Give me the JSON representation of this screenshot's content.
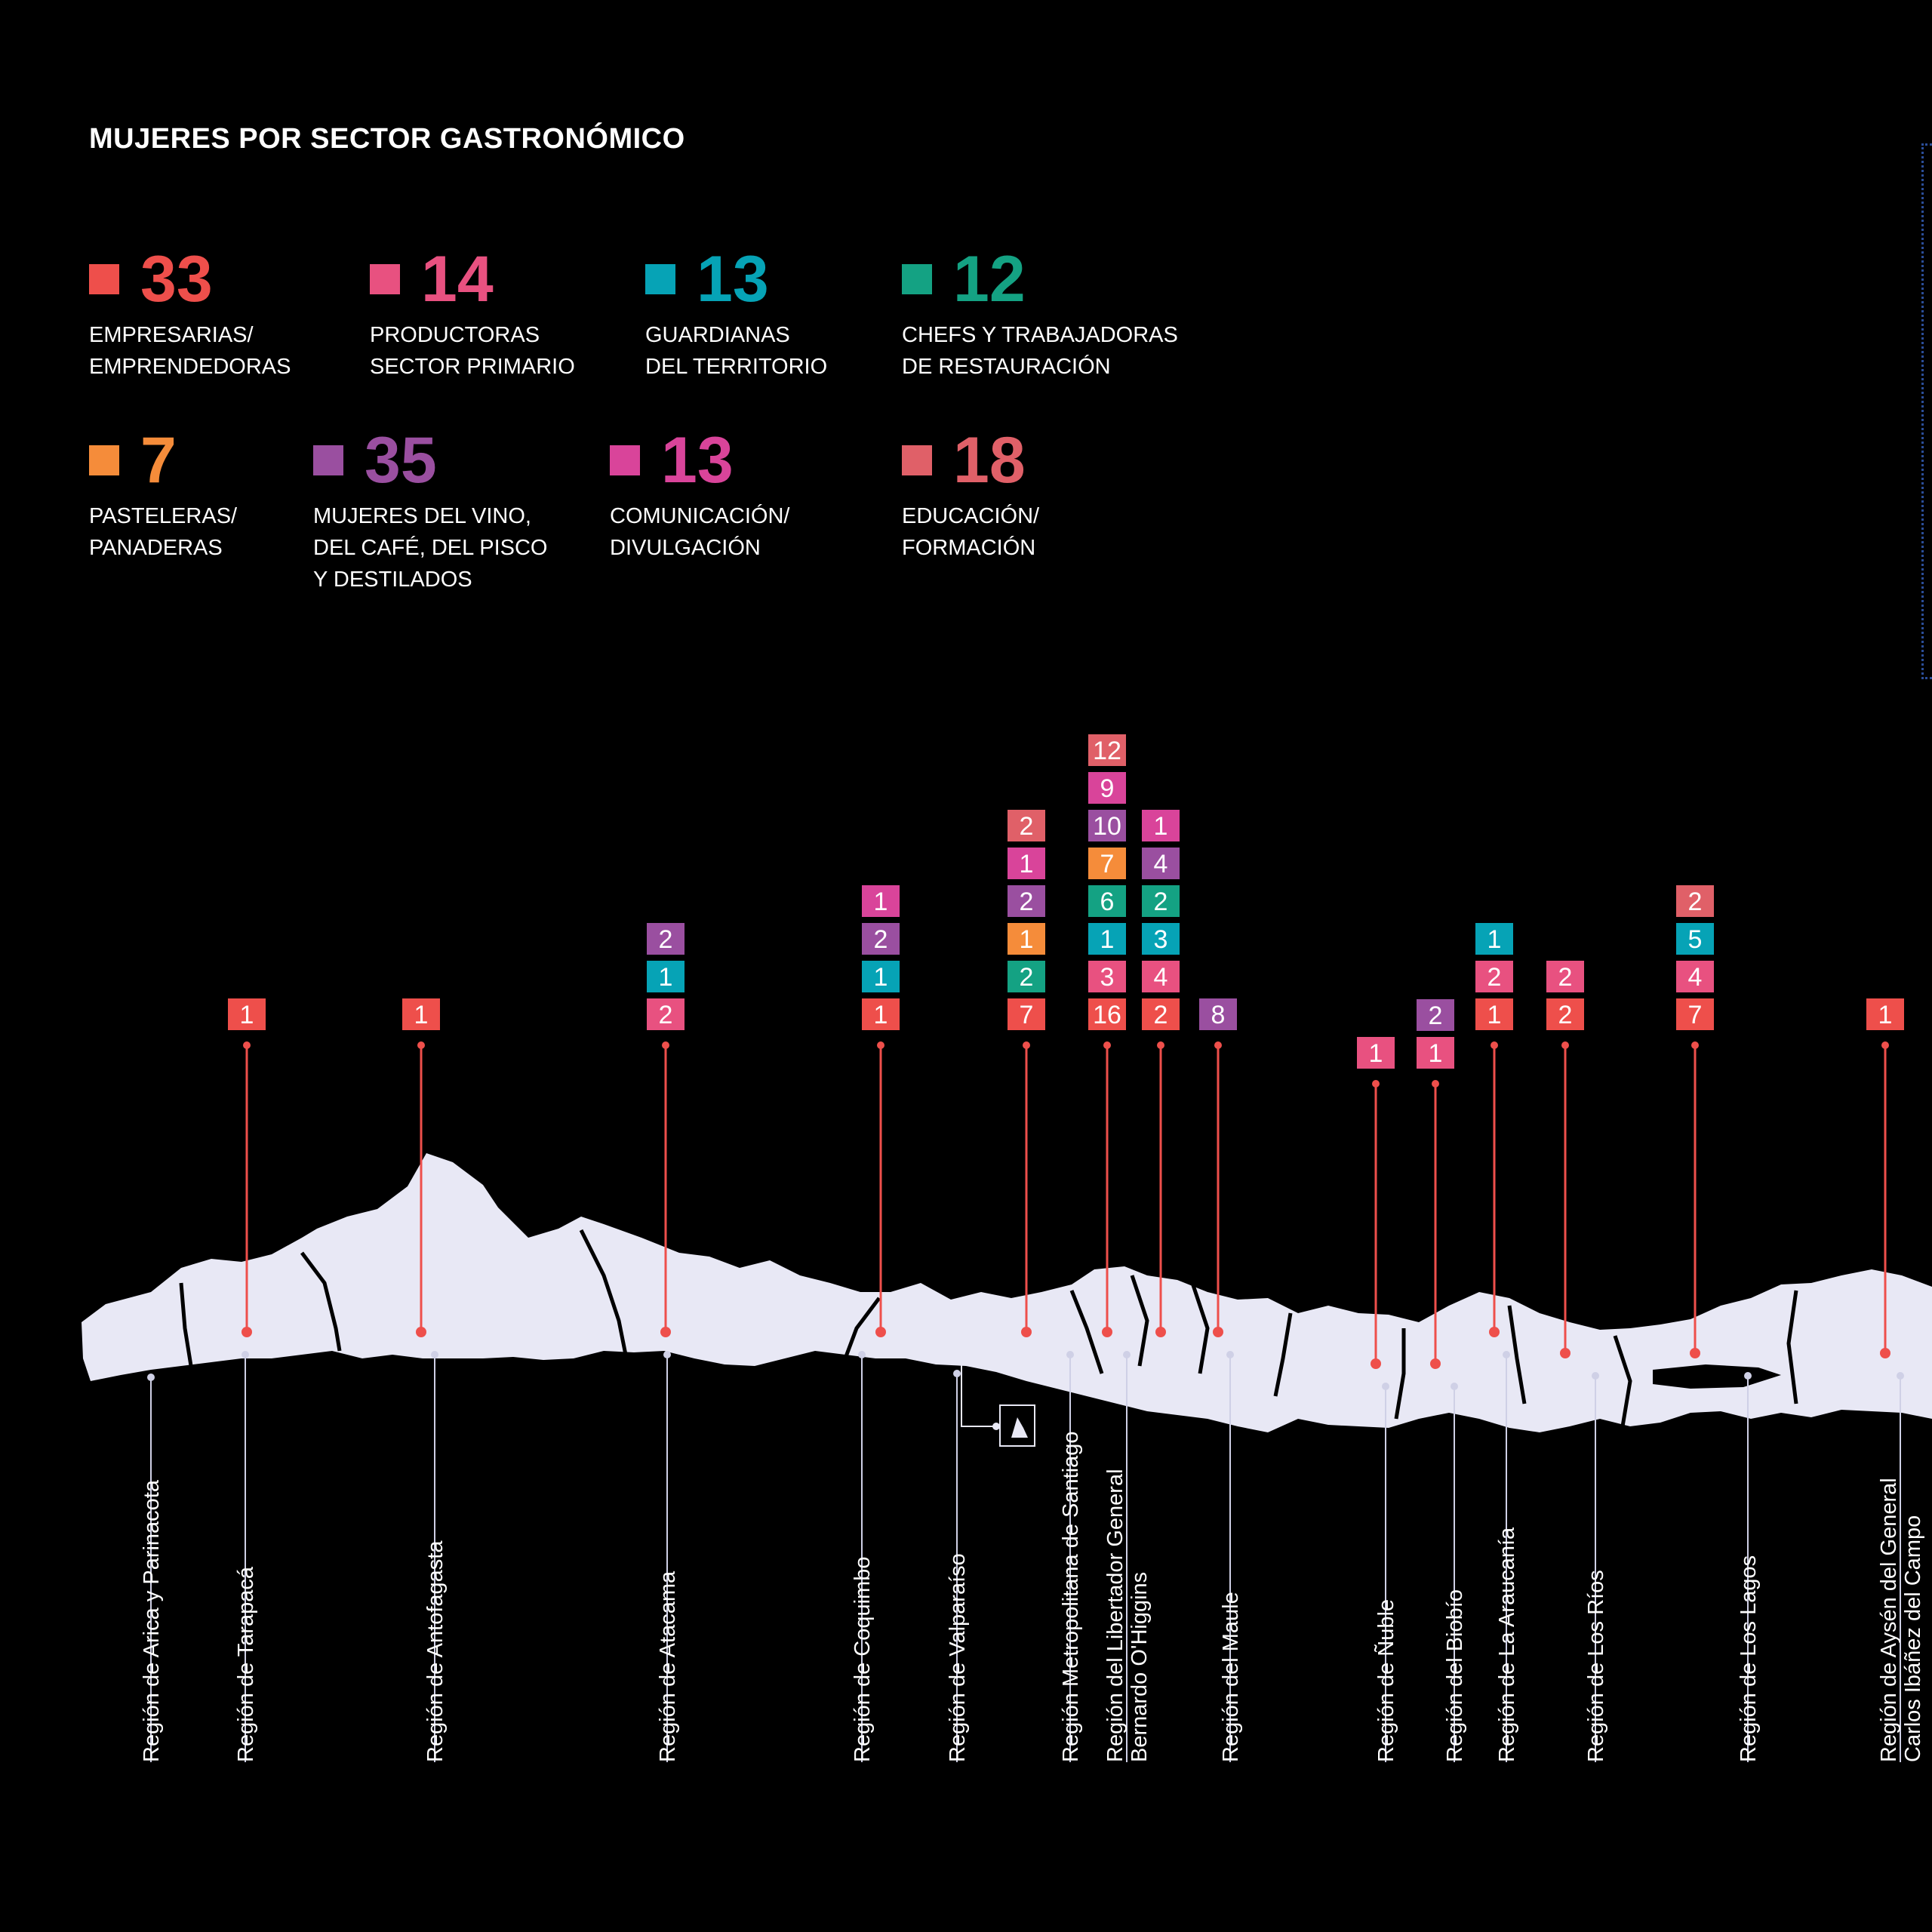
{
  "title": "MUJERES POR SECTOR GASTRONÓMICO",
  "legend": [
    {
      "count": "33",
      "label": "EMPRESARIAS/\nEMPRENDEDORAS",
      "color": "#ee4f4b"
    },
    {
      "count": "14",
      "label": "PRODUCTORAS\nSECTOR PRIMARIO",
      "color": "#e85180"
    },
    {
      "count": "13",
      "label": "GUARDIANAS\nDEL TERRITORIO",
      "color": "#06a3b6"
    },
    {
      "count": "12",
      "label": "CHEFS Y TRABAJADORAS\nDE RESTAURACIÓN",
      "color": "#14a283"
    },
    {
      "count": "7",
      "label": "PASTELERAS/\nPANADERAS",
      "color": "#f58c3a"
    },
    {
      "count": "35",
      "label": "MUJERES DEL VINO,\nDEL CAFÉ, DEL PISCO\n Y DESTILADOS",
      "color": "#9a4fa0"
    },
    {
      "count": "13",
      "label": "COMUNICACIÓN/\nDIVULGACIÓN",
      "color": "#d9449a"
    },
    {
      "count": "18",
      "label": "EDUCACIÓN/\nFORMACIÓN",
      "color": "#e06068"
    }
  ],
  "chart_data": {
    "type": "stacked-markers-map",
    "title": "MUJERES POR SECTOR GASTRONÓMICO",
    "categories": [
      "EMPRESARIAS/ EMPRENDEDORAS",
      "PRODUCTORAS SECTOR PRIMARIO",
      "GUARDIANAS DEL TERRITORIO",
      "CHEFS Y TRABAJADORAS DE RESTAURACIÓN",
      "PASTELERAS/ PANADERAS",
      "MUJERES DEL VINO, DEL CAFÉ, DEL PISCO Y DESTILADOS",
      "COMUNICACIÓN/ DIVULGACIÓN",
      "EDUCACIÓN/ FORMACIÓN"
    ],
    "totals": [
      33,
      14,
      13,
      12,
      7,
      35,
      13,
      18
    ],
    "regions": [
      {
        "name": "Región de Arica y Parinacota",
        "entries": []
      },
      {
        "name": "Región de Tarapacá",
        "entries": [
          {
            "category": 0,
            "value": 1
          }
        ]
      },
      {
        "name": "Región de Antofagasta",
        "entries": [
          {
            "category": 0,
            "value": 1
          }
        ]
      },
      {
        "name": "Región de Atacama",
        "entries": [
          {
            "category": 1,
            "value": 2
          },
          {
            "category": 2,
            "value": 1
          },
          {
            "category": 5,
            "value": 2
          }
        ]
      },
      {
        "name": "Región de Coquimbo",
        "entries": [
          {
            "category": 0,
            "value": 1
          },
          {
            "category": 2,
            "value": 1
          },
          {
            "category": 5,
            "value": 2
          },
          {
            "category": 6,
            "value": 1
          }
        ]
      },
      {
        "name": "Región de Valparaíso",
        "entries": []
      },
      {
        "name": "Región Metropolitana de Santiago",
        "entries": [
          {
            "category": 0,
            "value": 7
          },
          {
            "category": 3,
            "value": 2
          },
          {
            "category": 4,
            "value": 1
          },
          {
            "category": 5,
            "value": 2
          },
          {
            "category": 6,
            "value": 1
          },
          {
            "category": 7,
            "value": 2
          }
        ]
      },
      {
        "name": "Región del Libertador General\nBernardo O'Higgins",
        "entries": [
          {
            "category": 0,
            "value": 16
          },
          {
            "category": 1,
            "value": 3
          },
          {
            "category": 2,
            "value": 1
          },
          {
            "category": 3,
            "value": 6
          },
          {
            "category": 4,
            "value": 7
          },
          {
            "category": 5,
            "value": 10
          },
          {
            "category": 6,
            "value": 9
          },
          {
            "category": 7,
            "value": 12
          }
        ]
      },
      {
        "name": "Región del Maule",
        "entries": [
          {
            "category": 0,
            "value": 2
          },
          {
            "category": 1,
            "value": 4
          },
          {
            "category": 2,
            "value": 3
          },
          {
            "category": 3,
            "value": 2
          },
          {
            "category": 5,
            "value": 4
          },
          {
            "category": 6,
            "value": 1
          }
        ]
      },
      {
        "name": "Región de Ñuble",
        "entries": [
          {
            "category": 1,
            "value": 1
          }
        ]
      },
      {
        "name": "Región del Biobío",
        "entries": [
          {
            "category": 1,
            "value": 1
          },
          {
            "category": 5,
            "value": 2
          }
        ]
      },
      {
        "name": "Región de La Araucanía",
        "entries": [
          {
            "category": 0,
            "value": 1
          },
          {
            "category": 1,
            "value": 2
          },
          {
            "category": 2,
            "value": 1
          }
        ]
      },
      {
        "name": "Región de Los Ríos",
        "entries": [
          {
            "category": 0,
            "value": 2
          },
          {
            "category": 1,
            "value": 2
          }
        ]
      },
      {
        "name": "Región de Los Lagos",
        "entries": [
          {
            "category": 0,
            "value": 7
          },
          {
            "category": 1,
            "value": 4
          },
          {
            "category": 2,
            "value": 5
          },
          {
            "category": 7,
            "value": 2
          }
        ]
      },
      {
        "name": "Región de Aysén del General\nCarlos Ibáñez del Campo",
        "entries": [
          {
            "category": 0,
            "value": 1
          }
        ]
      }
    ],
    "unlabeled_stacks": [
      {
        "entries": [
          {
            "category": 5,
            "value": 8
          }
        ]
      }
    ]
  }
}
